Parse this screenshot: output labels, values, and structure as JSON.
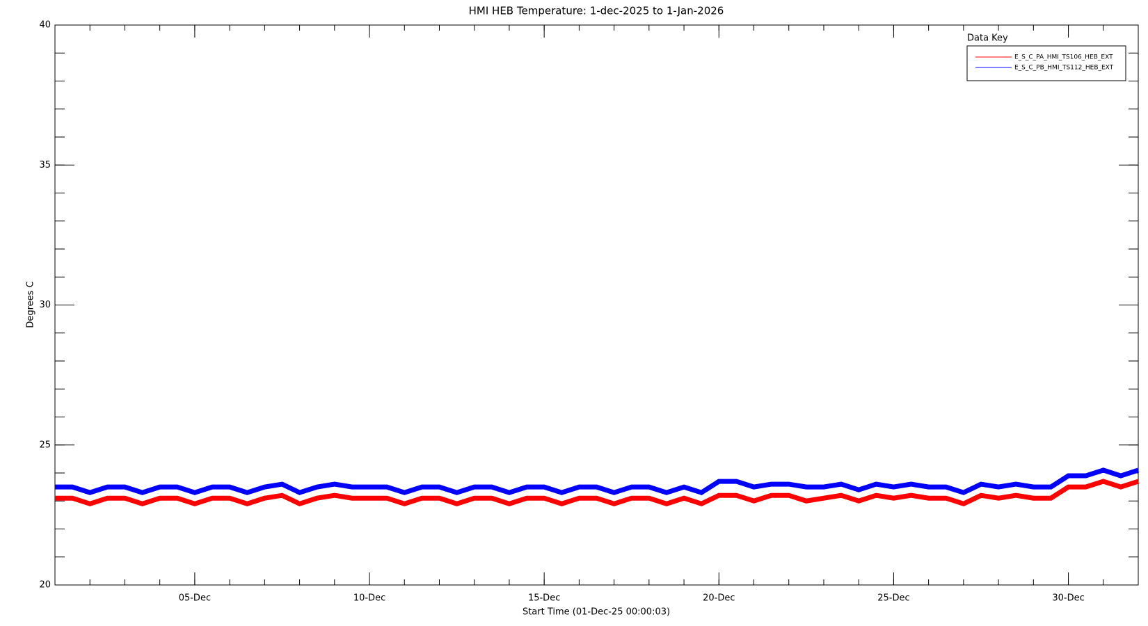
{
  "chart_data": {
    "type": "line",
    "title": "HMI HEB Temperature: 1-dec-2025 to 1-Jan-2026",
    "xlabel": "Start Time (01-Dec-25 00:00:03)",
    "ylabel": "Degrees C",
    "legend_title": "Data Key",
    "legend": "upper right",
    "xlim": [
      1,
      32
    ],
    "ylim": [
      20,
      40
    ],
    "xticks": [
      {
        "value": 5,
        "label": "05-Dec"
      },
      {
        "value": 10,
        "label": "10-Dec"
      },
      {
        "value": 15,
        "label": "15-Dec"
      },
      {
        "value": 20,
        "label": "20-Dec"
      },
      {
        "value": 25,
        "label": "25-Dec"
      },
      {
        "value": 30,
        "label": "30-Dec"
      }
    ],
    "yticks": [
      20,
      25,
      30,
      35,
      40
    ],
    "x": [
      1,
      1.5,
      2,
      2.5,
      3,
      3.5,
      4,
      4.5,
      5,
      5.5,
      6,
      6.5,
      7,
      7.5,
      8,
      8.5,
      9,
      9.5,
      10,
      10.5,
      11,
      11.5,
      12,
      12.5,
      13,
      13.5,
      14,
      14.5,
      15,
      15.5,
      16,
      16.5,
      17,
      17.5,
      18,
      18.5,
      19,
      19.5,
      20,
      20.5,
      21,
      21.5,
      22,
      22.5,
      23,
      23.5,
      24,
      24.5,
      25,
      25.5,
      26,
      26.5,
      27,
      27.5,
      28,
      28.5,
      29,
      29.5,
      30,
      30.5,
      31,
      31.5,
      32
    ],
    "series": [
      {
        "name": "E_S_C_PA_HMI_TS106_HEB_EXT",
        "color": "#ff0000",
        "values": [
          23.1,
          23.1,
          22.9,
          23.1,
          23.1,
          22.9,
          23.1,
          23.1,
          22.9,
          23.1,
          23.1,
          22.9,
          23.1,
          23.2,
          22.9,
          23.1,
          23.2,
          23.1,
          23.1,
          23.1,
          22.9,
          23.1,
          23.1,
          22.9,
          23.1,
          23.1,
          22.9,
          23.1,
          23.1,
          22.9,
          23.1,
          23.1,
          22.9,
          23.1,
          23.1,
          22.9,
          23.1,
          22.9,
          23.2,
          23.2,
          23.0,
          23.2,
          23.2,
          23.0,
          23.1,
          23.2,
          23.0,
          23.2,
          23.1,
          23.2,
          23.1,
          23.1,
          22.9,
          23.2,
          23.1,
          23.2,
          23.1,
          23.1,
          23.5,
          23.5,
          23.7,
          23.5,
          23.7
        ]
      },
      {
        "name": "E_S_C_PB_HMI_TS112_HEB_EXT",
        "color": "#0000ff",
        "values": [
          23.5,
          23.5,
          23.3,
          23.5,
          23.5,
          23.3,
          23.5,
          23.5,
          23.3,
          23.5,
          23.5,
          23.3,
          23.5,
          23.6,
          23.3,
          23.5,
          23.6,
          23.5,
          23.5,
          23.5,
          23.3,
          23.5,
          23.5,
          23.3,
          23.5,
          23.5,
          23.3,
          23.5,
          23.5,
          23.3,
          23.5,
          23.5,
          23.3,
          23.5,
          23.5,
          23.3,
          23.5,
          23.3,
          23.7,
          23.7,
          23.5,
          23.6,
          23.6,
          23.5,
          23.5,
          23.6,
          23.4,
          23.6,
          23.5,
          23.6,
          23.5,
          23.5,
          23.3,
          23.6,
          23.5,
          23.6,
          23.5,
          23.5,
          23.9,
          23.9,
          24.1,
          23.9,
          24.1
        ]
      }
    ]
  }
}
